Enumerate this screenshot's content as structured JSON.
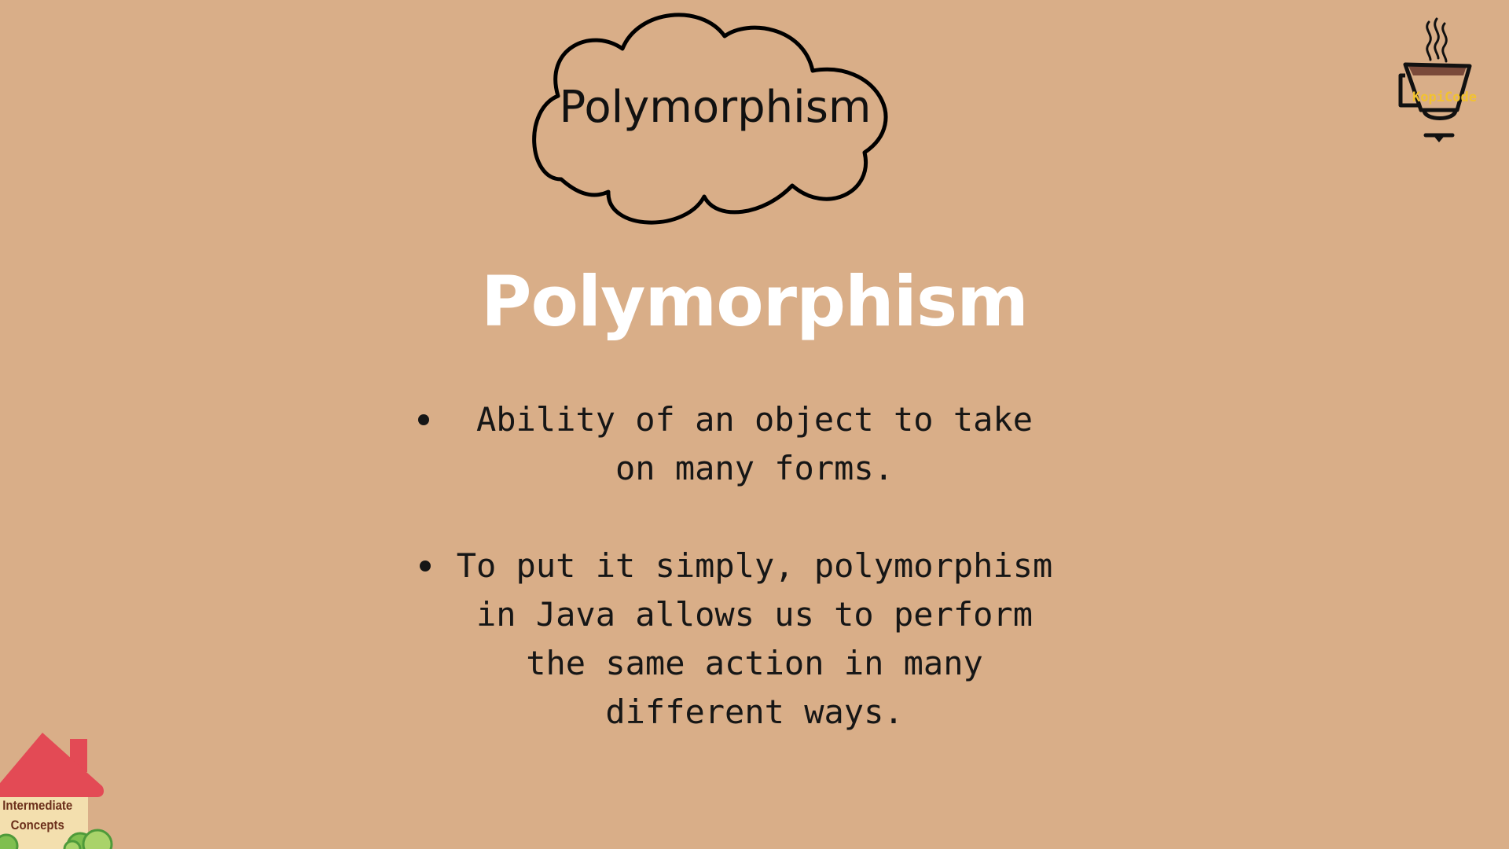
{
  "cloud_title": "Polymorphism",
  "heading": "Polymorphism",
  "bullets": [
    {
      "lines": [
        "Ability of an object to take",
        "on many forms."
      ]
    },
    {
      "lines": [
        "To put it simply, polymorphism",
        "in Java allows us to perform",
        "the same action in many",
        "different ways."
      ]
    }
  ],
  "logo": {
    "text": "KopiCode",
    "icon": "coffee-cup-icon"
  },
  "corner_badge": {
    "lines": [
      "Intermediate",
      "Concepts"
    ],
    "icon": "house-icon"
  },
  "colors": {
    "background": "#d9ae88",
    "heading": "#ffffff",
    "body_text": "#161616",
    "logo_text": "#f2c230",
    "house_roof": "#e34a55"
  }
}
